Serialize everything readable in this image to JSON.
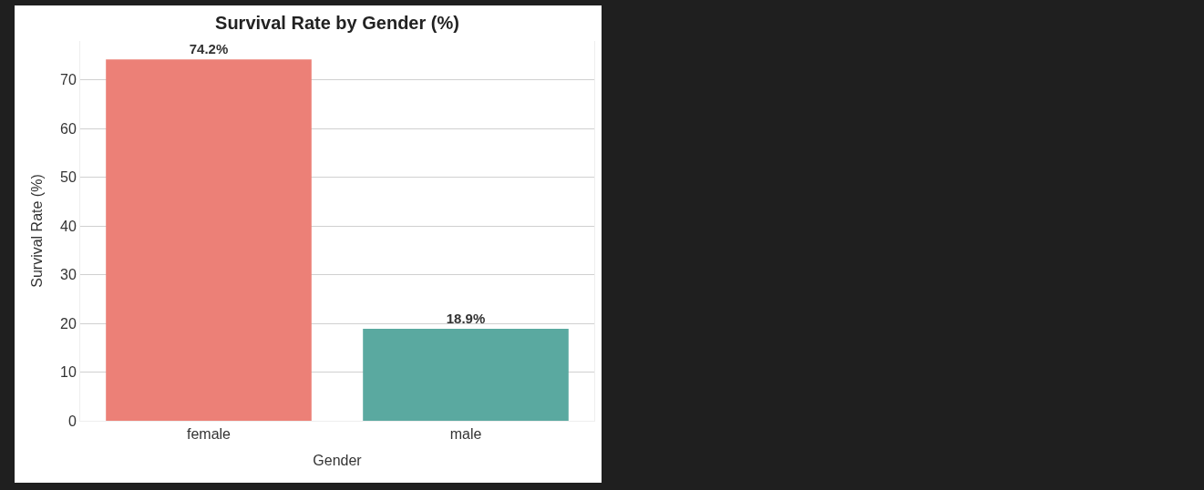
{
  "chart_data": {
    "type": "bar",
    "title": "Survival Rate by Gender (%)",
    "xlabel": "Gender",
    "ylabel": "Survival Rate (%)",
    "categories": [
      "female",
      "male"
    ],
    "values": [
      74.2,
      18.9
    ],
    "colors": [
      "#ec8077",
      "#5aa9a0"
    ],
    "value_labels": [
      "74.2%",
      "18.9%"
    ],
    "ylim": [
      0,
      78
    ],
    "yticks": [
      0,
      10,
      20,
      30,
      40,
      50,
      60,
      70
    ],
    "grid": "y",
    "legend": false
  }
}
